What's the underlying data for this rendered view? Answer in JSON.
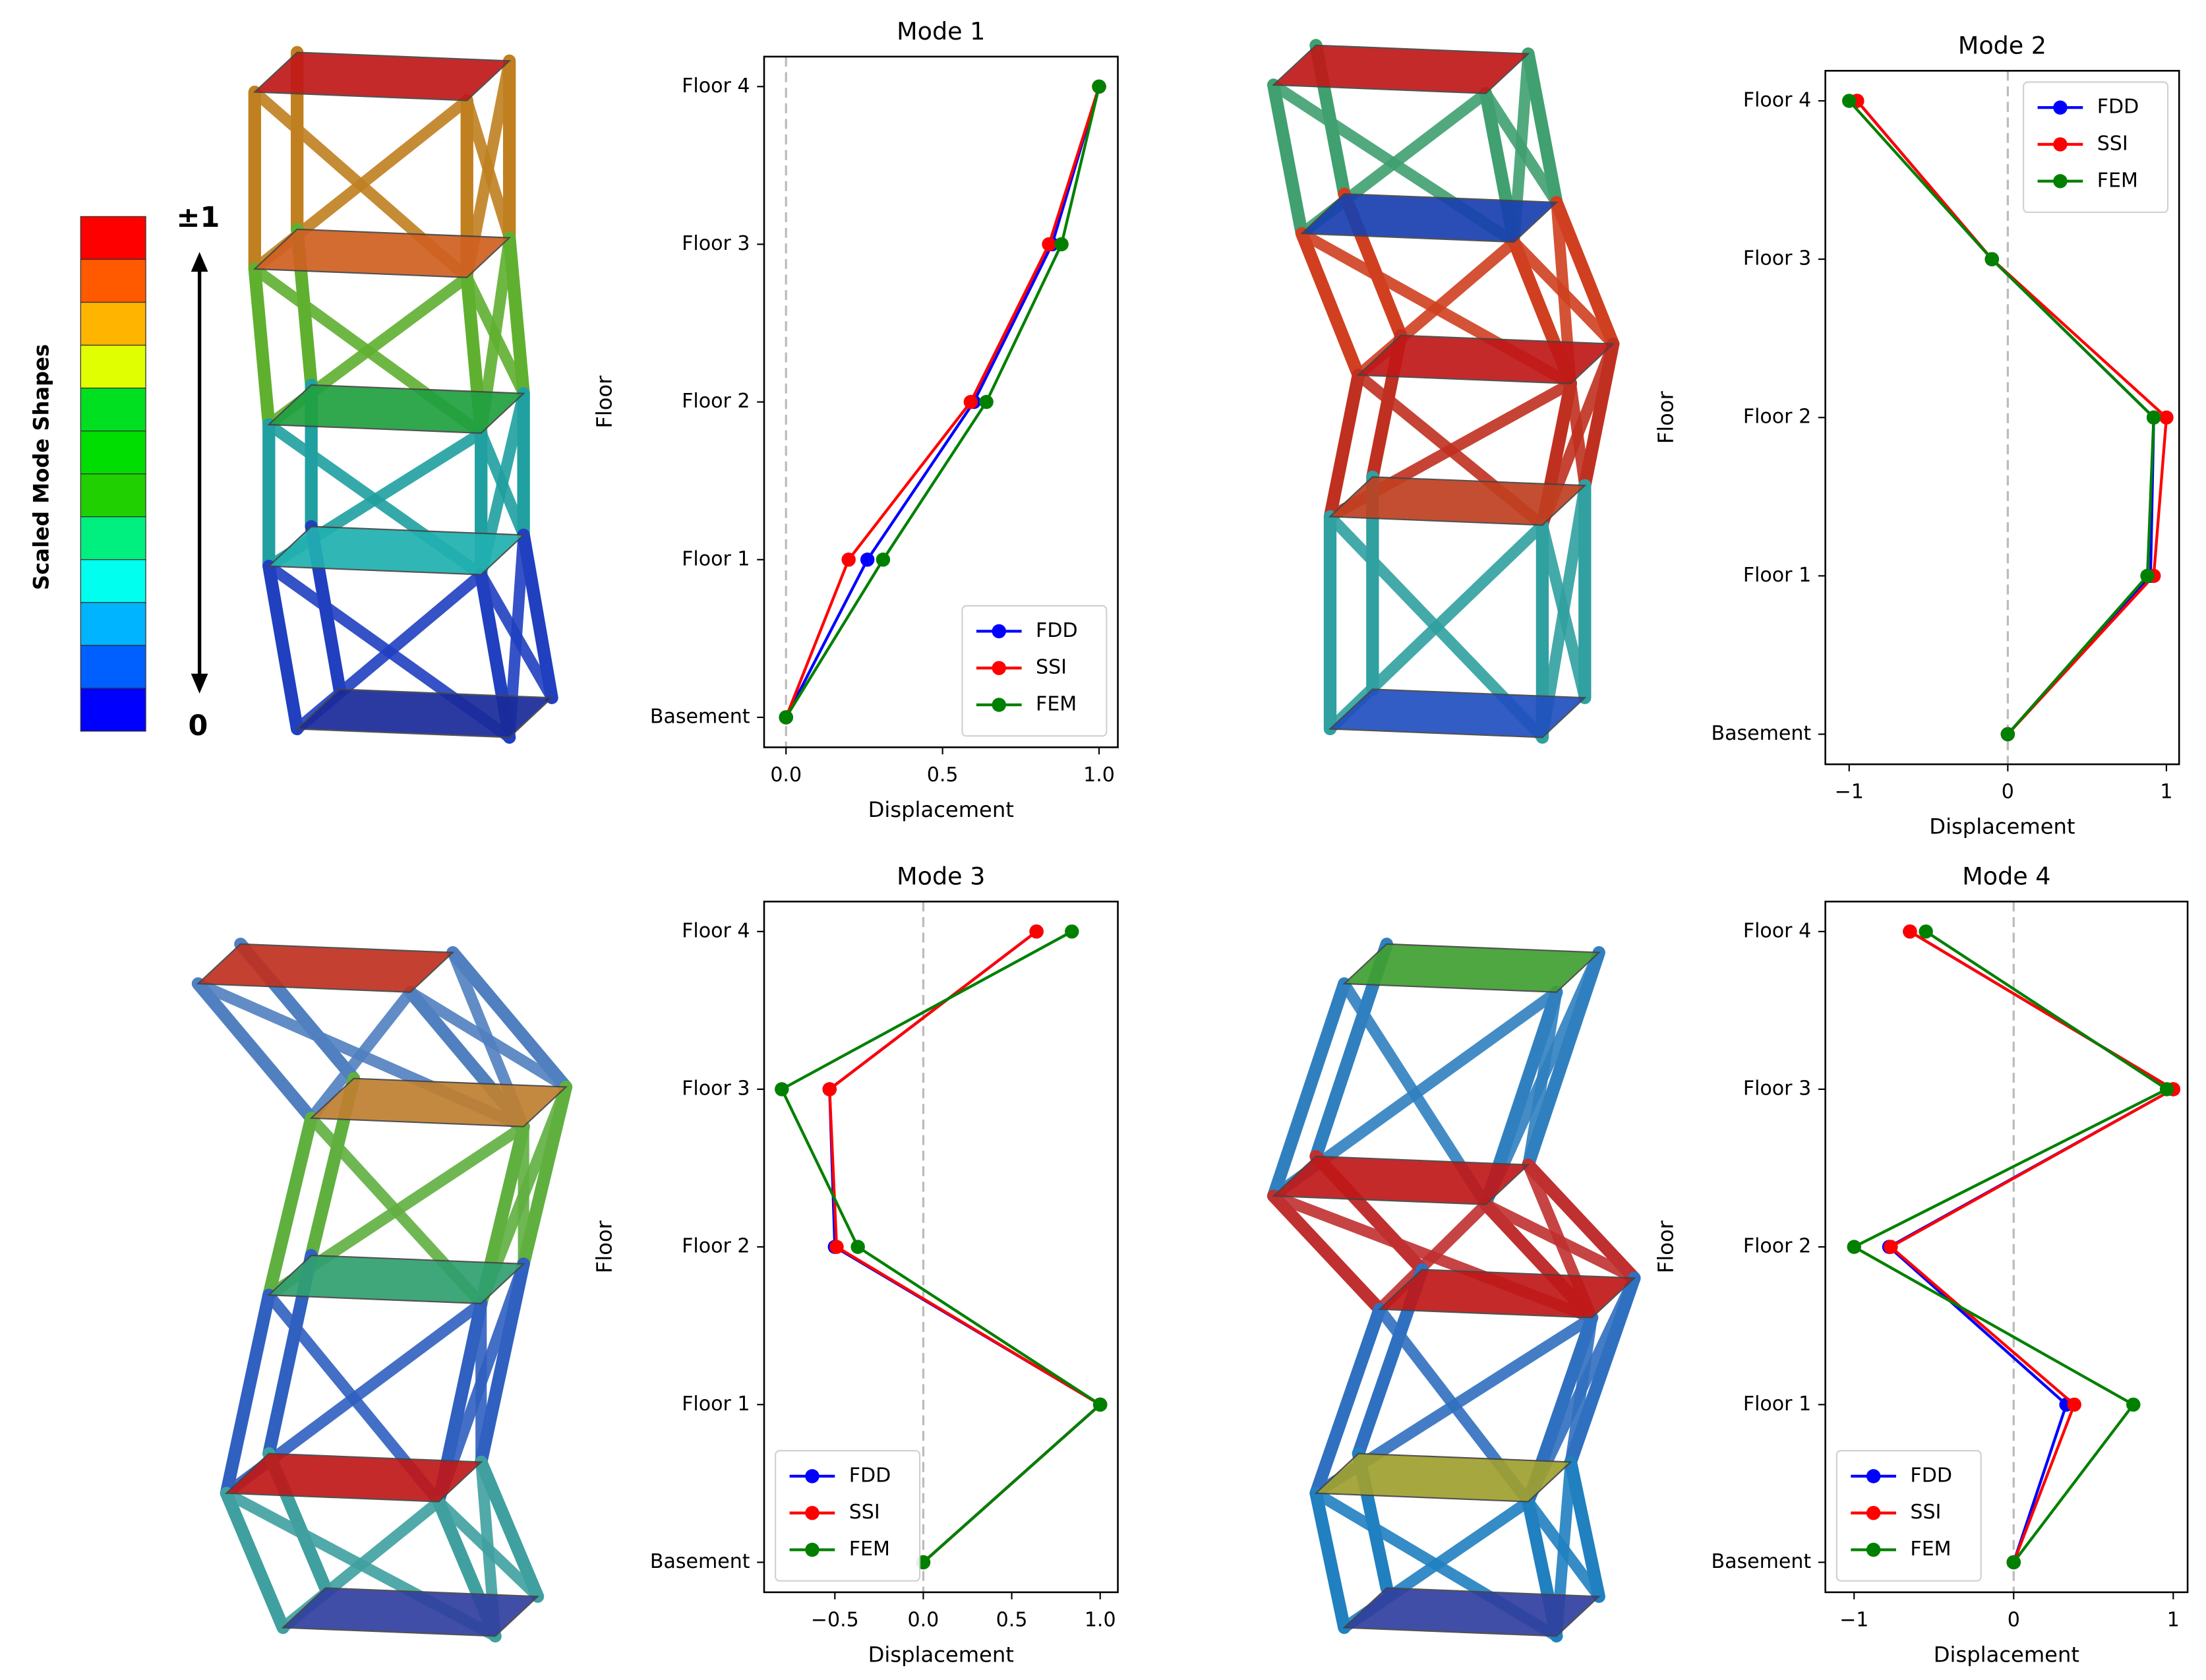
{
  "colorbar": {
    "label": "Scaled Mode Shapes",
    "top": "±1",
    "bottom": "0"
  },
  "chart_data": [
    {
      "type": "line",
      "title": "Mode 1",
      "xlabel": "Displacement",
      "ylabel": "Floor",
      "categories": [
        "Basement",
        "Floor 1",
        "Floor 2",
        "Floor 3",
        "Floor 4"
      ],
      "series": [
        {
          "name": "FDD",
          "color": "#0000ff",
          "values": [
            0,
            0.26,
            0.6,
            0.85,
            1
          ]
        },
        {
          "name": "SSI",
          "color": "#ff0000",
          "values": [
            0,
            0.2,
            0.59,
            0.84,
            1
          ]
        },
        {
          "name": "FEM",
          "color": "#008000",
          "values": [
            0,
            0.31,
            0.64,
            0.88,
            1
          ]
        }
      ],
      "xlim": [
        -0.07,
        1.06
      ],
      "xticks": [
        {
          "value": 0,
          "label": "0.0"
        },
        {
          "value": 0.5,
          "label": "0.5"
        },
        {
          "value": 1,
          "label": "1.0"
        }
      ],
      "vline": 0,
      "legend": "lower right"
    },
    {
      "type": "line",
      "title": "Mode 2",
      "xlabel": "Displacement",
      "ylabel": "Floor",
      "categories": [
        "Basement",
        "Floor 1",
        "Floor 2",
        "Floor 3",
        "Floor 4"
      ],
      "series": [
        {
          "name": "FDD",
          "color": "#0000ff",
          "values": [
            0,
            0.9,
            0.92,
            -0.1,
            -0.95
          ]
        },
        {
          "name": "SSI",
          "color": "#ff0000",
          "values": [
            0,
            0.92,
            1.0,
            -0.1,
            -0.95
          ]
        },
        {
          "name": "FEM",
          "color": "#008000",
          "values": [
            0,
            0.88,
            0.92,
            -0.1,
            -1.0
          ]
        }
      ],
      "xlim": [
        -1.15,
        1.08
      ],
      "xticks": [
        {
          "value": -1,
          "label": "−1"
        },
        0,
        1
      ],
      "vline": 0,
      "legend": "upper right"
    },
    {
      "type": "line",
      "title": "Mode 3",
      "xlabel": "Displacement",
      "ylabel": "Floor",
      "categories": [
        "Basement",
        "Floor 1",
        "Floor 2",
        "Floor 3",
        "Floor 4"
      ],
      "series": [
        {
          "name": "FDD",
          "color": "#0000ff",
          "values": [
            0,
            1,
            -0.5,
            -0.53,
            0.64
          ]
        },
        {
          "name": "SSI",
          "color": "#ff0000",
          "values": [
            0,
            1,
            -0.49,
            -0.53,
            0.64
          ]
        },
        {
          "name": "FEM",
          "color": "#008000",
          "values": [
            0,
            1,
            -0.37,
            -0.8,
            0.84
          ]
        }
      ],
      "xlim": [
        -0.9,
        1.1
      ],
      "xticks": [
        {
          "value": -0.5,
          "label": "−0.5"
        },
        {
          "value": 0,
          "label": "0.0"
        },
        {
          "value": 0.5,
          "label": "0.5"
        },
        {
          "value": 1,
          "label": "1.0"
        }
      ],
      "vline": 0,
      "legend": "lower left"
    },
    {
      "type": "line",
      "title": "Mode 4",
      "xlabel": "Displacement",
      "ylabel": "Floor",
      "categories": [
        "Basement",
        "Floor 1",
        "Floor 2",
        "Floor 3",
        "Floor 4"
      ],
      "series": [
        {
          "name": "FDD",
          "color": "#0000ff",
          "values": [
            0,
            0.33,
            -0.78,
            1.0,
            -0.65
          ]
        },
        {
          "name": "SSI",
          "color": "#ff0000",
          "values": [
            0,
            0.38,
            -0.77,
            1.0,
            -0.65
          ]
        },
        {
          "name": "FEM",
          "color": "#008000",
          "values": [
            0,
            0.75,
            -1.0,
            0.96,
            -0.55
          ]
        }
      ],
      "xlim": [
        -1.18,
        1.09
      ],
      "xticks": [
        {
          "value": -1,
          "label": "−1"
        },
        0,
        1
      ],
      "vline": 0,
      "legend": "lower left"
    }
  ]
}
